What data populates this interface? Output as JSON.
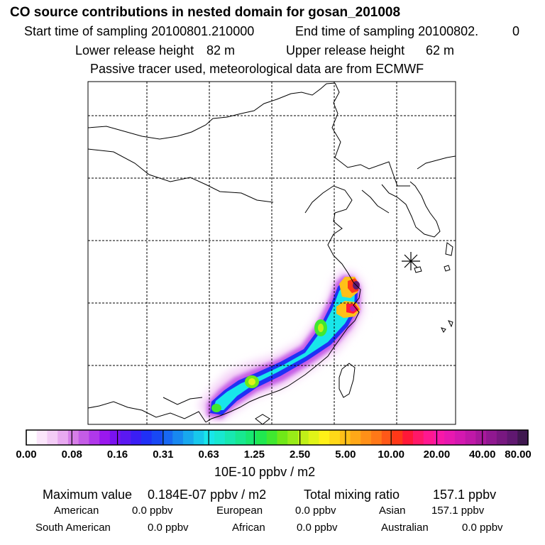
{
  "header": {
    "title": "CO  source contributions in nested domain for gosan_201008",
    "start_label": "Start time of sampling 20100801.210000",
    "end_label": "End time of sampling 20100802.",
    "end_suffix": "0",
    "lower_label": "Lower release height",
    "lower_value": "82 m",
    "upper_label": "Upper release height",
    "upper_value": "62 m",
    "note": "Passive tracer used, meteorological data are from ECMWF"
  },
  "colorbar": {
    "unit": "10E-10 ppbv / m2",
    "tick_labels": [
      "0.00",
      "0.08",
      "0.16",
      "0.31",
      "0.63",
      "1.25",
      "2.50",
      "5.00",
      "10.00",
      "20.00",
      "40.00",
      "80.00"
    ],
    "colors": [
      "#ffffff",
      "#fbe6fb",
      "#f3ccf6",
      "#e8a9f0",
      "#d67ee8",
      "#c45ce6",
      "#b038ea",
      "#9a18ee",
      "#7a12f0",
      "#5b18f2",
      "#3a1ef4",
      "#2030f6",
      "#1848f4",
      "#1868f2",
      "#1888f0",
      "#18a8ee",
      "#18c8ec",
      "#18e6ea",
      "#18e8d0",
      "#18e8b0",
      "#18e890",
      "#18e870",
      "#20e850",
      "#40e830",
      "#70e818",
      "#98ec18",
      "#c0f018",
      "#e0f418",
      "#fff018",
      "#ffd818",
      "#ffc018",
      "#ffa818",
      "#ff9018",
      "#ff7818",
      "#ff5818",
      "#ff3818",
      "#ff1838",
      "#ff1868",
      "#ff1890",
      "#f818a8",
      "#e818b0",
      "#d418b0",
      "#c018a8",
      "#a8189c",
      "#901890",
      "#781880",
      "#601870",
      "#401850"
    ]
  },
  "chart_data": {
    "type": "heatmap",
    "title": "CO  source contributions in nested domain for gosan_201008",
    "colorbar_levels": [
      0.0,
      0.08,
      0.16,
      0.31,
      0.63,
      1.25,
      2.5,
      5.0,
      10.0,
      20.0,
      40.0,
      80.0
    ],
    "unit": "10E-10 ppbv / m2",
    "grid": true,
    "plume": [
      {
        "level": 0.08,
        "note": "outer envelope"
      },
      {
        "level": 0.63,
        "note": "core band"
      },
      {
        "level": 5.0,
        "note": "hotspots near coast"
      },
      {
        "level": 40.0,
        "note": "peak near receptor coast"
      }
    ],
    "receptor_marker": "gosan"
  },
  "stats": {
    "max_label": "Maximum value",
    "max_value": "0.184E-07 ppbv / m2",
    "total_label": "Total mixing ratio",
    "total_value": "157.1 ppbv",
    "sources": [
      {
        "name": "American",
        "value": "0.0 ppbv"
      },
      {
        "name": "European",
        "value": "0.0 ppbv"
      },
      {
        "name": "Asian",
        "value": "157.1 ppbv"
      },
      {
        "name": "South American",
        "value": "0.0 ppbv"
      },
      {
        "name": "African",
        "value": "0.0 ppbv"
      },
      {
        "name": "Australian",
        "value": "0.0 ppbv"
      }
    ]
  }
}
